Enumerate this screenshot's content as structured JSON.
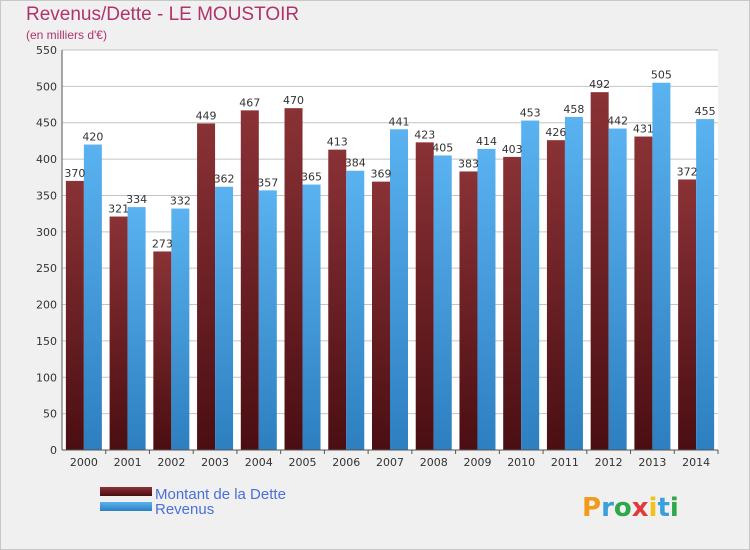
{
  "header": {
    "title": "Revenus/Dette - LE MOUSTOIR",
    "subtitle": "(en milliers d'€)"
  },
  "logo": {
    "text": "Proxiti",
    "colors": [
      "#f29a1a",
      "#3aa0dc",
      "#2ea84a",
      "#e23a3a",
      "#f2c21a",
      "#3aa0dc",
      "#2ea84a"
    ]
  },
  "chart_data": {
    "type": "bar",
    "categories": [
      "2000",
      "2001",
      "2002",
      "2003",
      "2004",
      "2005",
      "2006",
      "2007",
      "2008",
      "2009",
      "2010",
      "2011",
      "2012",
      "2013",
      "2014"
    ],
    "series": [
      {
        "name": "Montant de la Dette",
        "color": "#7a2a2e",
        "values": [
          370,
          321,
          273,
          449,
          467,
          470,
          413,
          369,
          423,
          383,
          403,
          426,
          492,
          431,
          372
        ]
      },
      {
        "name": "Revenus",
        "color": "#4aa3e6",
        "values": [
          420,
          334,
          332,
          362,
          357,
          365,
          384,
          441,
          405,
          414,
          453,
          458,
          442,
          505,
          455
        ]
      }
    ],
    "ylim": [
      0,
      550
    ],
    "yticks": [
      0,
      50,
      100,
      150,
      200,
      250,
      300,
      350,
      400,
      450,
      500,
      550
    ],
    "grid": true,
    "legend": "bottom-left"
  }
}
